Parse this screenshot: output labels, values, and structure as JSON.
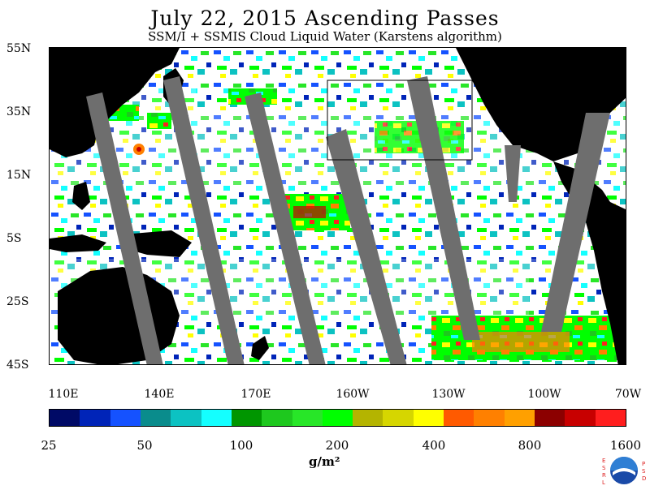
{
  "title": "July 22, 2015  Ascending Passes",
  "subtitle": "SSM/I + SSMIS Cloud Liquid Water (Karstens algorithm)",
  "lat_labels": [
    "55N",
    "35N",
    "15N",
    "5S",
    "25S",
    "45S"
  ],
  "lon_labels": [
    "110E",
    "140E",
    "170E",
    "160W",
    "130W",
    "100W",
    "70W"
  ],
  "colorbar": {
    "colors": [
      "#000a66",
      "#0024b8",
      "#1552ff",
      "#0a8c8c",
      "#0cc2c2",
      "#14ffff",
      "#009600",
      "#1ec81e",
      "#28e628",
      "#00ff00",
      "#b4b400",
      "#d6d600",
      "#ffff00",
      "#ff5a00",
      "#ff8000",
      "#ffa000",
      "#8c0000",
      "#c80000",
      "#ff1e1e"
    ],
    "tick_labels": [
      "25",
      "50",
      "100",
      "200",
      "400",
      "800",
      "1600"
    ],
    "unit": "g/m²"
  },
  "logo": {
    "left_text": "E S R L",
    "right_text": "P S D",
    "name": "noaa-logo"
  }
}
